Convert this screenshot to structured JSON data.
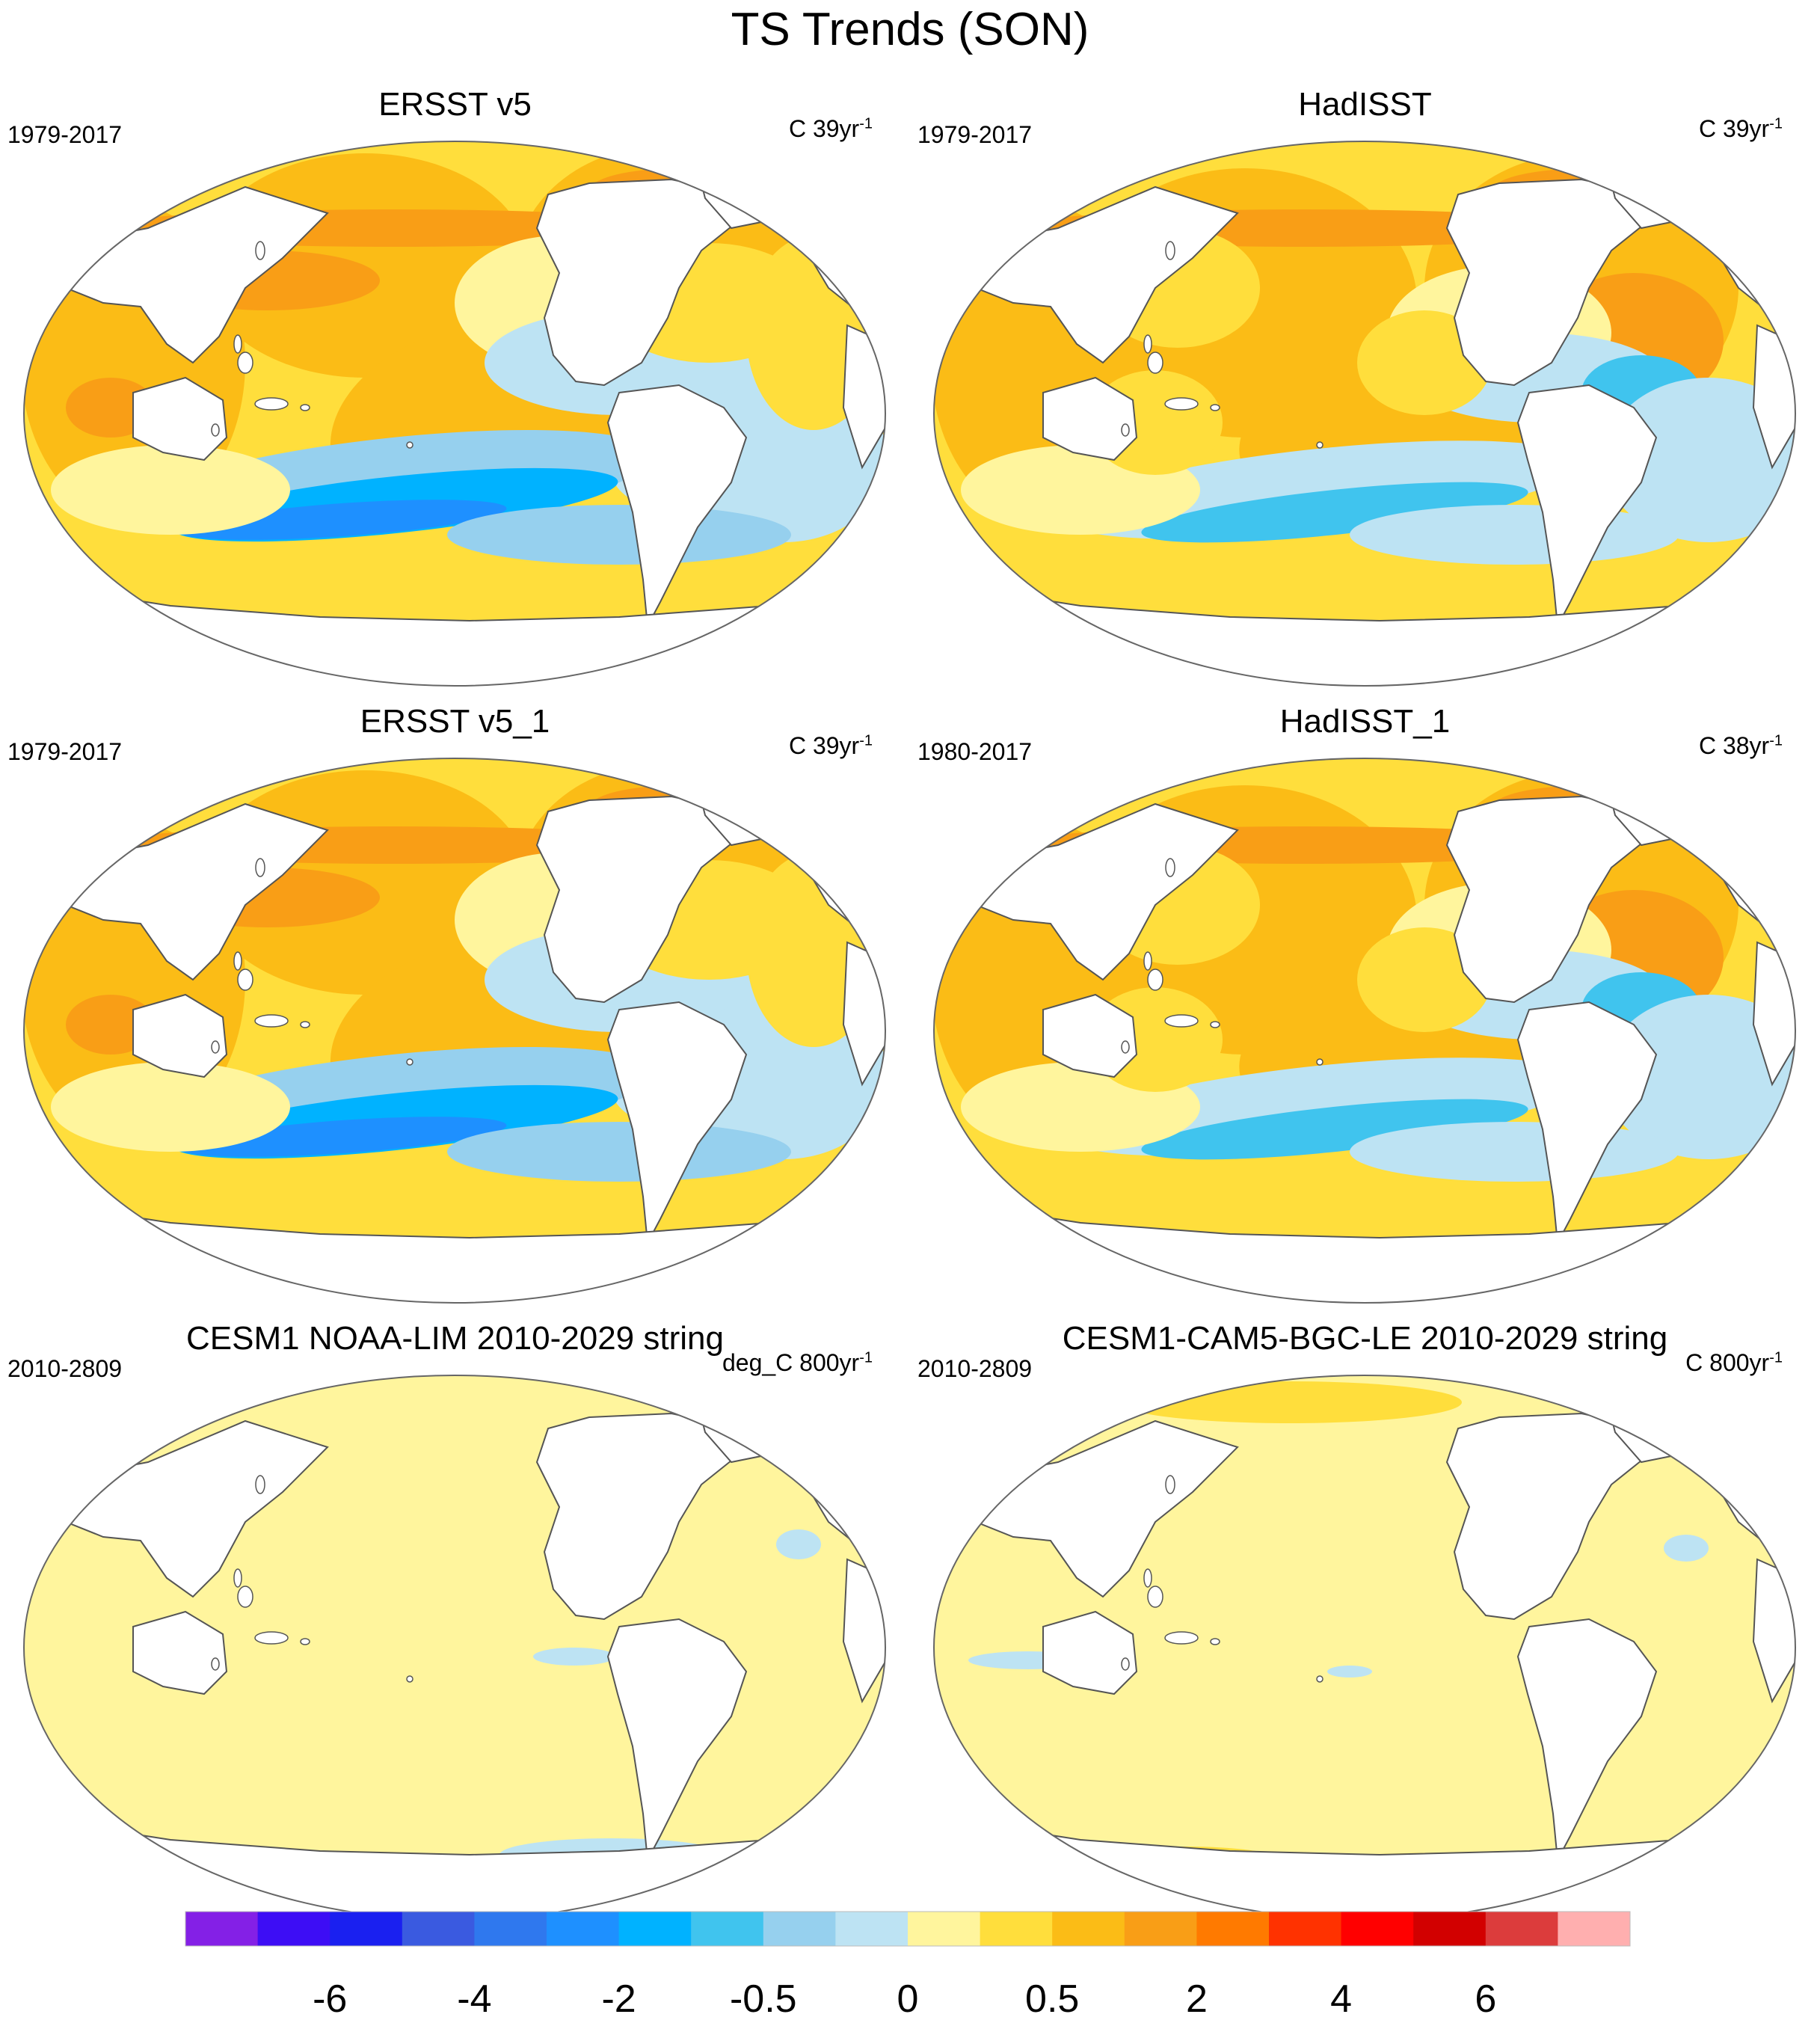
{
  "title": "TS Trends (SON)",
  "colors": {
    "land": "#ffffff",
    "coast": "#555555",
    "palette": [
      "#8420e6",
      "#3d0df5",
      "#1a20f0",
      "#3a5ae0",
      "#2f78ee",
      "#1e90ff",
      "#00b2ff",
      "#40c4ee",
      "#96d0ee",
      "#bde3f3",
      "#fff59d",
      "#ffde3c",
      "#fbbc16",
      "#f99e16",
      "#ff7a00",
      "#ff3200",
      "#ff0000",
      "#d20000",
      "#dc3c3c",
      "#ffafaf"
    ]
  },
  "panels": [
    {
      "title": "ERSST v5",
      "period": "1979-2017",
      "units": "C 39yr",
      "exp": "-1",
      "pattern": "ersst"
    },
    {
      "title": "HadISST",
      "period": "1979-2017",
      "units": "C 39yr",
      "exp": "-1",
      "pattern": "hadisst"
    },
    {
      "title": "ERSST v5_1",
      "period": "1979-2017",
      "units": "C 39yr",
      "exp": "-1",
      "pattern": "ersst"
    },
    {
      "title": "HadISST_1",
      "period": "1980-2017",
      "units": "C 38yr",
      "exp": "-1",
      "pattern": "hadisst"
    },
    {
      "title": "CESM1 NOAA-LIM 2010-2029 string",
      "period": "2010-2809",
      "units": "deg_C 800yr",
      "exp": "-1",
      "pattern": "flat1"
    },
    {
      "title": "CESM1-CAM5-BGC-LE 2010-2029 string",
      "period": "2010-2809",
      "units": "C 800yr",
      "exp": "-1",
      "pattern": "flat2"
    }
  ],
  "chart_data": {
    "type": "heatmap",
    "colorbar_tick_labels": [
      "-6",
      "-4",
      "-2",
      "-0.5",
      "0",
      "0.5",
      "2",
      "4",
      "6"
    ],
    "colorbar_bins": 20
  }
}
